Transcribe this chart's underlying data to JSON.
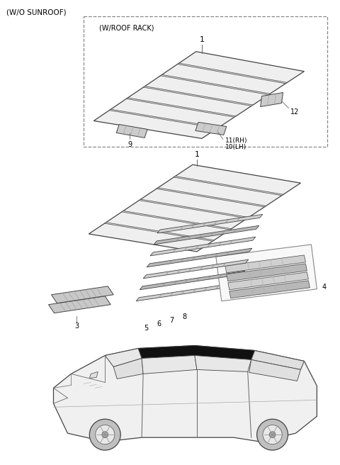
{
  "bg_color": "#ffffff",
  "label_wo_sunroof": "(W/O SUNROOF)",
  "label_roof_rack": "(W/ROOF RACK)",
  "fig_w": 4.8,
  "fig_h": 6.56,
  "dpi": 100,
  "edge_color": "#444444",
  "light_fill": "#f0f0f0",
  "medium_fill": "#e0e0e0",
  "dark_fill": "#cccccc",
  "panel_fill": "#efefef",
  "black": "#000000",
  "gray_line": "#666666"
}
